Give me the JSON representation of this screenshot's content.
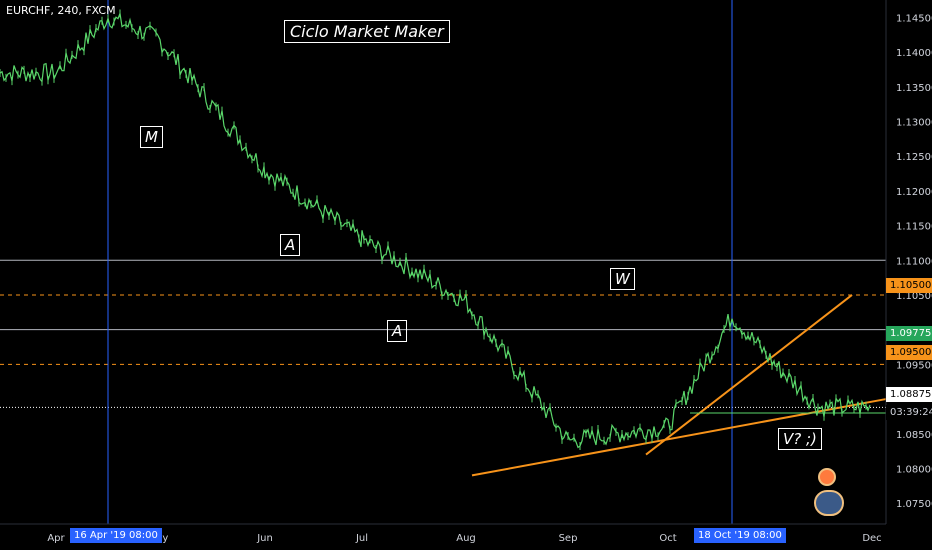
{
  "header": {
    "symbol_label": "EURCHF, 240, FXCM"
  },
  "annotations": {
    "title": "Ciclo Market Maker",
    "labels": [
      {
        "text": "M"
      },
      {
        "text": "A"
      },
      {
        "text": "A"
      },
      {
        "text": "W"
      },
      {
        "text": "V? ;)"
      }
    ]
  },
  "badges": {
    "price_resistance": "1.10500",
    "price_current": "1.09775",
    "price_support": "1.09500",
    "price_last": "1.08875",
    "countdown": "03:39:24",
    "date_left": "16 Apr '19   08:00",
    "date_right": "18 Oct '19   08:00"
  },
  "colors": {
    "background": "#000000",
    "candles": "#5ad66a",
    "trendline": "#f7931a",
    "dashed_levels": "#f7931a",
    "gray_levels": "#b2b5be",
    "vertical_markers": "#2962ff",
    "badge_resistance": "#f7931a",
    "badge_current": "#26a65b",
    "badge_last": "#ffffff"
  },
  "chart_data": {
    "type": "line",
    "x": [
      "Apr",
      "16 Apr",
      "May",
      "Jun",
      "Jul",
      "Aug",
      "Sep",
      "Oct",
      "18 Oct",
      "Nov",
      "Dec"
    ],
    "x_tick_labels": [
      "Apr",
      "May",
      "Jun",
      "Jul",
      "Aug",
      "Sep",
      "Oct",
      "Nov",
      "Dec"
    ],
    "y_tick_labels": [
      "1.14500",
      "1.14000",
      "1.13500",
      "1.13000",
      "1.12500",
      "1.12000",
      "1.11500",
      "1.11000",
      "1.10500",
      "1.10000",
      "1.09500",
      "1.08500",
      "1.08000",
      "1.07500"
    ],
    "ylim": [
      1.072,
      1.1475
    ],
    "series": [
      {
        "x": [
          "Apr",
          "16 Apr",
          "May",
          "Jun",
          "Jul",
          "Aug",
          "Sep",
          "Oct",
          "18 Oct",
          "Nov",
          "Dec"
        ],
        "values": [
          1.137,
          1.145,
          1.142,
          1.123,
          1.113,
          1.104,
          1.084,
          1.086,
          1.102,
          1.095,
          1.0888
        ]
      }
    ],
    "horizontal_levels": [
      1.11,
      1.105,
      1.1,
      1.095,
      1.0888
    ],
    "trendlines": [
      {
        "from": [
          1.079
        ],
        "to": [
          1.09
        ]
      },
      {
        "from": [
          1.082
        ],
        "to": [
          1.105
        ]
      }
    ],
    "grid": false
  }
}
